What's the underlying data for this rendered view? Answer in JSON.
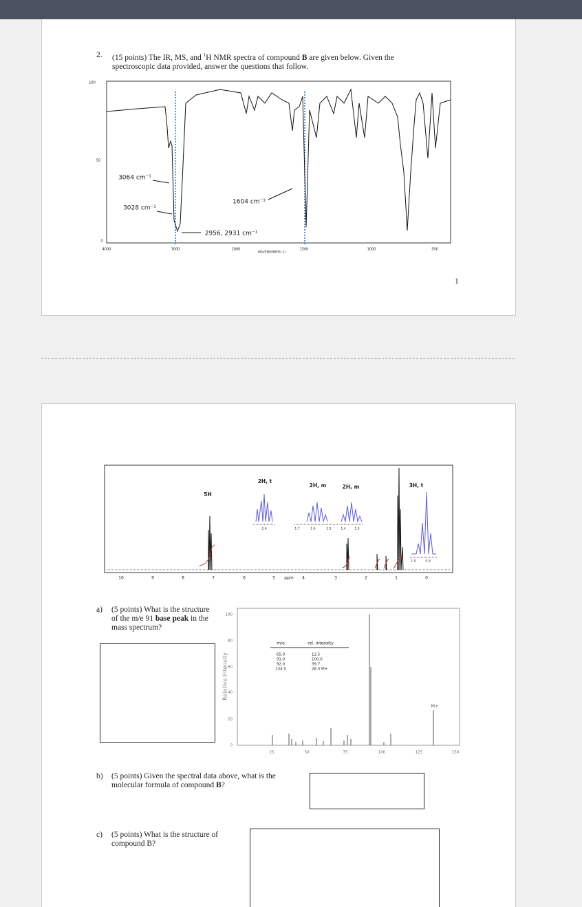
{
  "page1": {
    "question": {
      "number": "2.",
      "text_start": "(15 points) The IR, MS, and ",
      "superscript": "1",
      "text_middle": "H NMR spectra of compound ",
      "bold": "B",
      "text_end": " are given below.  Given the spectroscopic data provided, answer the questions that follow."
    },
    "ir": {
      "yticks": [
        "100",
        "50",
        "0"
      ],
      "xticks": [
        "4000",
        "3000",
        "2000",
        "1500",
        "1000",
        "500"
      ],
      "xlabel": "WAVENUMBER(-1)",
      "annotations": [
        "3064 cm⁻¹",
        "3028 cm⁻¹",
        "1604 cm⁻¹",
        "2956, 2931 cm⁻¹"
      ]
    },
    "page_number": "1"
  },
  "page2": {
    "nmr": {
      "peak_labels": [
        "5H",
        "2H, t",
        "2H, m",
        "2H, m",
        "3H, t"
      ],
      "xticks": [
        "10",
        "9",
        "8",
        "7",
        "6",
        "5",
        "ppm",
        "4",
        "3",
        "2",
        "1",
        "0"
      ],
      "inset_ticks": [
        "2.6",
        "1.7",
        "1.6",
        "1.5",
        "1.4",
        "1.3",
        "1.0",
        "0.9"
      ]
    },
    "question_a": {
      "label": "a)",
      "text_start": "(5 points)  What is the structure of the m/e 91 ",
      "bold": "base peak",
      "text_end": " in the mass spectrum?"
    },
    "ms": {
      "ylabel": "Relative Intensity",
      "yticks": [
        "100",
        "80",
        "60",
        "40",
        "20",
        "0"
      ],
      "xticks": [
        "25",
        "50",
        "75",
        "100",
        "125",
        "150"
      ],
      "table_header": [
        "m/e",
        "rel. intensity"
      ],
      "table_rows": [
        [
          "65.0",
          "12.5"
        ],
        [
          "91.0",
          "100.0"
        ],
        [
          "92.0",
          "39.7"
        ],
        [
          "134.0",
          "26.3 M+"
        ]
      ],
      "peak_label": "M+"
    },
    "question_b": {
      "label": "b)",
      "text_start": "(5 points)  Given the spectral data above, what is the molecular formula of compound ",
      "bold": "B",
      "text_end": "?"
    },
    "question_c": {
      "label": "c)",
      "text": "(5 points)  What is the structure of compound B?"
    }
  }
}
